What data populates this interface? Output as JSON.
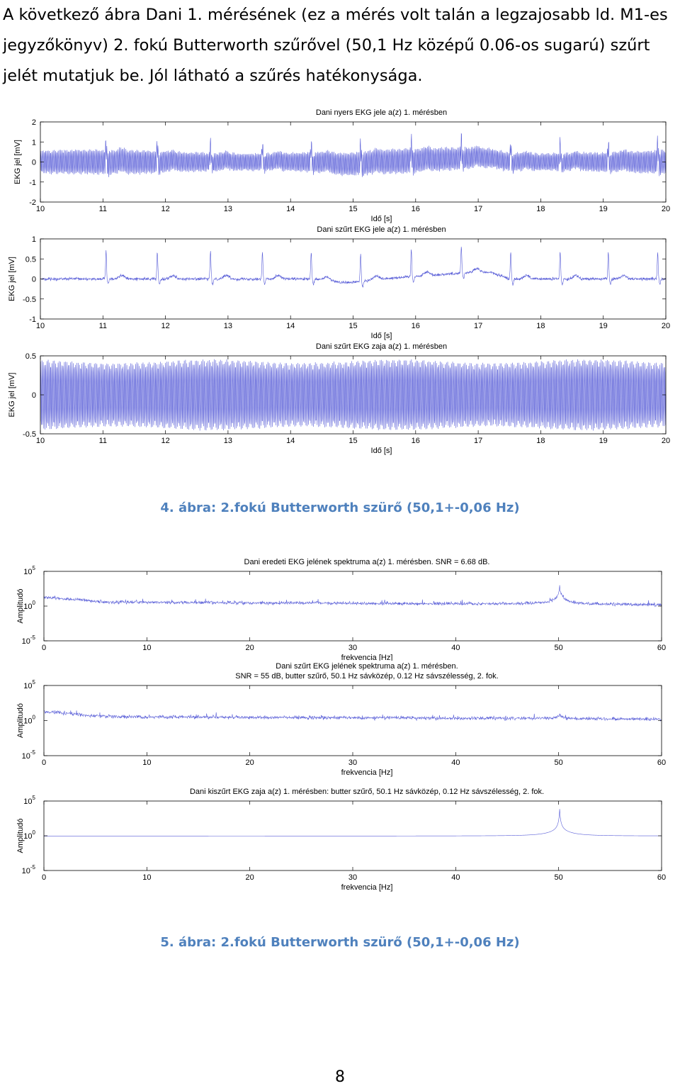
{
  "intro_text": "A következő ábra Dani 1. mérésének (ez a mérés volt talán a legzajosabb ld. M1-es jegyzőkönyv) 2. fokú Butterworth szűrővel (50,1 Hz középű 0.06-os sugarú) szűrt jelét mutatjuk be. Jól látható a szűrés hatékonysága.",
  "caption_4": "4. ábra: 2.fokú Butterworth szürő (50,1+-0,06 Hz)",
  "caption_5": "5. ábra: 2.fokú Butterworth szürő (50,1+-0,06 Hz)",
  "page_number": "8",
  "colors": {
    "trace": "#3a3fd0",
    "caption": "#4f81bd"
  },
  "chart_data": [
    {
      "type": "line",
      "title": "Dani nyers EKG jele a(z) 1. mérésben",
      "xlabel": "Idő [s]",
      "ylabel": "EKG jel [mV]",
      "xlim": [
        10,
        20
      ],
      "ylim": [
        -2,
        2
      ],
      "xticks": [
        "10",
        "11",
        "12",
        "13",
        "14",
        "15",
        "16",
        "17",
        "18",
        "19",
        "20"
      ],
      "yticks": [
        "2",
        "1",
        "0",
        "-1",
        "-2"
      ],
      "yscale": "linear",
      "series": [
        {
          "values": []
        }
      ]
    },
    {
      "type": "line",
      "title": "Dani szűrt EKG jele a(z) 1. mérésben",
      "xlabel": "Idő [s]",
      "ylabel": "EKG jel [mV]",
      "xlim": [
        10,
        20
      ],
      "ylim": [
        -1,
        1
      ],
      "xticks": [
        "10",
        "11",
        "12",
        "13",
        "14",
        "15",
        "16",
        "17",
        "18",
        "19",
        "20"
      ],
      "yticks": [
        "1",
        "0.5",
        "0",
        "-0.5",
        "-1"
      ],
      "yscale": "linear",
      "series": [
        {
          "values": []
        }
      ]
    },
    {
      "type": "line",
      "title": "Dani szűrt EKG zaja a(z) 1. mérésben",
      "xlabel": "Idő [s]",
      "ylabel": "EKG jel [mV]",
      "xlim": [
        10,
        20
      ],
      "ylim": [
        -0.5,
        0.5
      ],
      "xticks": [
        "10",
        "11",
        "12",
        "13",
        "14",
        "15",
        "16",
        "17",
        "18",
        "19",
        "20"
      ],
      "yticks": [
        "0.5",
        "0",
        "-0.5"
      ],
      "yscale": "linear",
      "series": [
        {
          "values": []
        }
      ]
    },
    {
      "type": "line",
      "title": "Dani eredeti EKG jelének spektruma a(z) 1. mérésben. SNR = 6.68 dB.",
      "xlabel": "frekvencia [Hz]",
      "ylabel": "Amplitudó",
      "xlim": [
        0,
        60
      ],
      "ylim": [
        1e-05,
        100000.0
      ],
      "xticks": [
        "0",
        "10",
        "20",
        "30",
        "40",
        "50",
        "60"
      ],
      "yticks": [
        "10^5",
        "10^0",
        "10^-5"
      ],
      "yscale": "log",
      "series": [
        {
          "values": []
        }
      ]
    },
    {
      "type": "line",
      "title": "Dani szűrt EKG jelének spektruma a(z) 1. mérésben.",
      "title2": "SNR = 55 dB, butter szűrő, 50.1 Hz sávközép, 0.12 Hz sávszélesség, 2. fok.",
      "xlabel": "frekvencia [Hz]",
      "ylabel": "Amplitudó",
      "xlim": [
        0,
        60
      ],
      "ylim": [
        1e-05,
        100000.0
      ],
      "xticks": [
        "0",
        "10",
        "20",
        "30",
        "40",
        "50",
        "60"
      ],
      "yticks": [
        "10^5",
        "10^0",
        "10^-5"
      ],
      "yscale": "log",
      "series": [
        {
          "values": []
        }
      ]
    },
    {
      "type": "line",
      "title": "Dani kiszűrt EKG zaja a(z) 1. mérésben: butter szűrő, 50.1 Hz sávközép, 0.12 Hz sávszélesség, 2. fok.",
      "xlabel": "frekvencia [Hz]",
      "ylabel": "Amplitudó",
      "xlim": [
        0,
        60
      ],
      "ylim": [
        1e-05,
        100000.0
      ],
      "xticks": [
        "0",
        "10",
        "20",
        "30",
        "40",
        "50",
        "60"
      ],
      "yticks": [
        "10^5",
        "10^0",
        "10^-5"
      ],
      "yscale": "log",
      "series": [
        {
          "values": []
        }
      ]
    }
  ]
}
